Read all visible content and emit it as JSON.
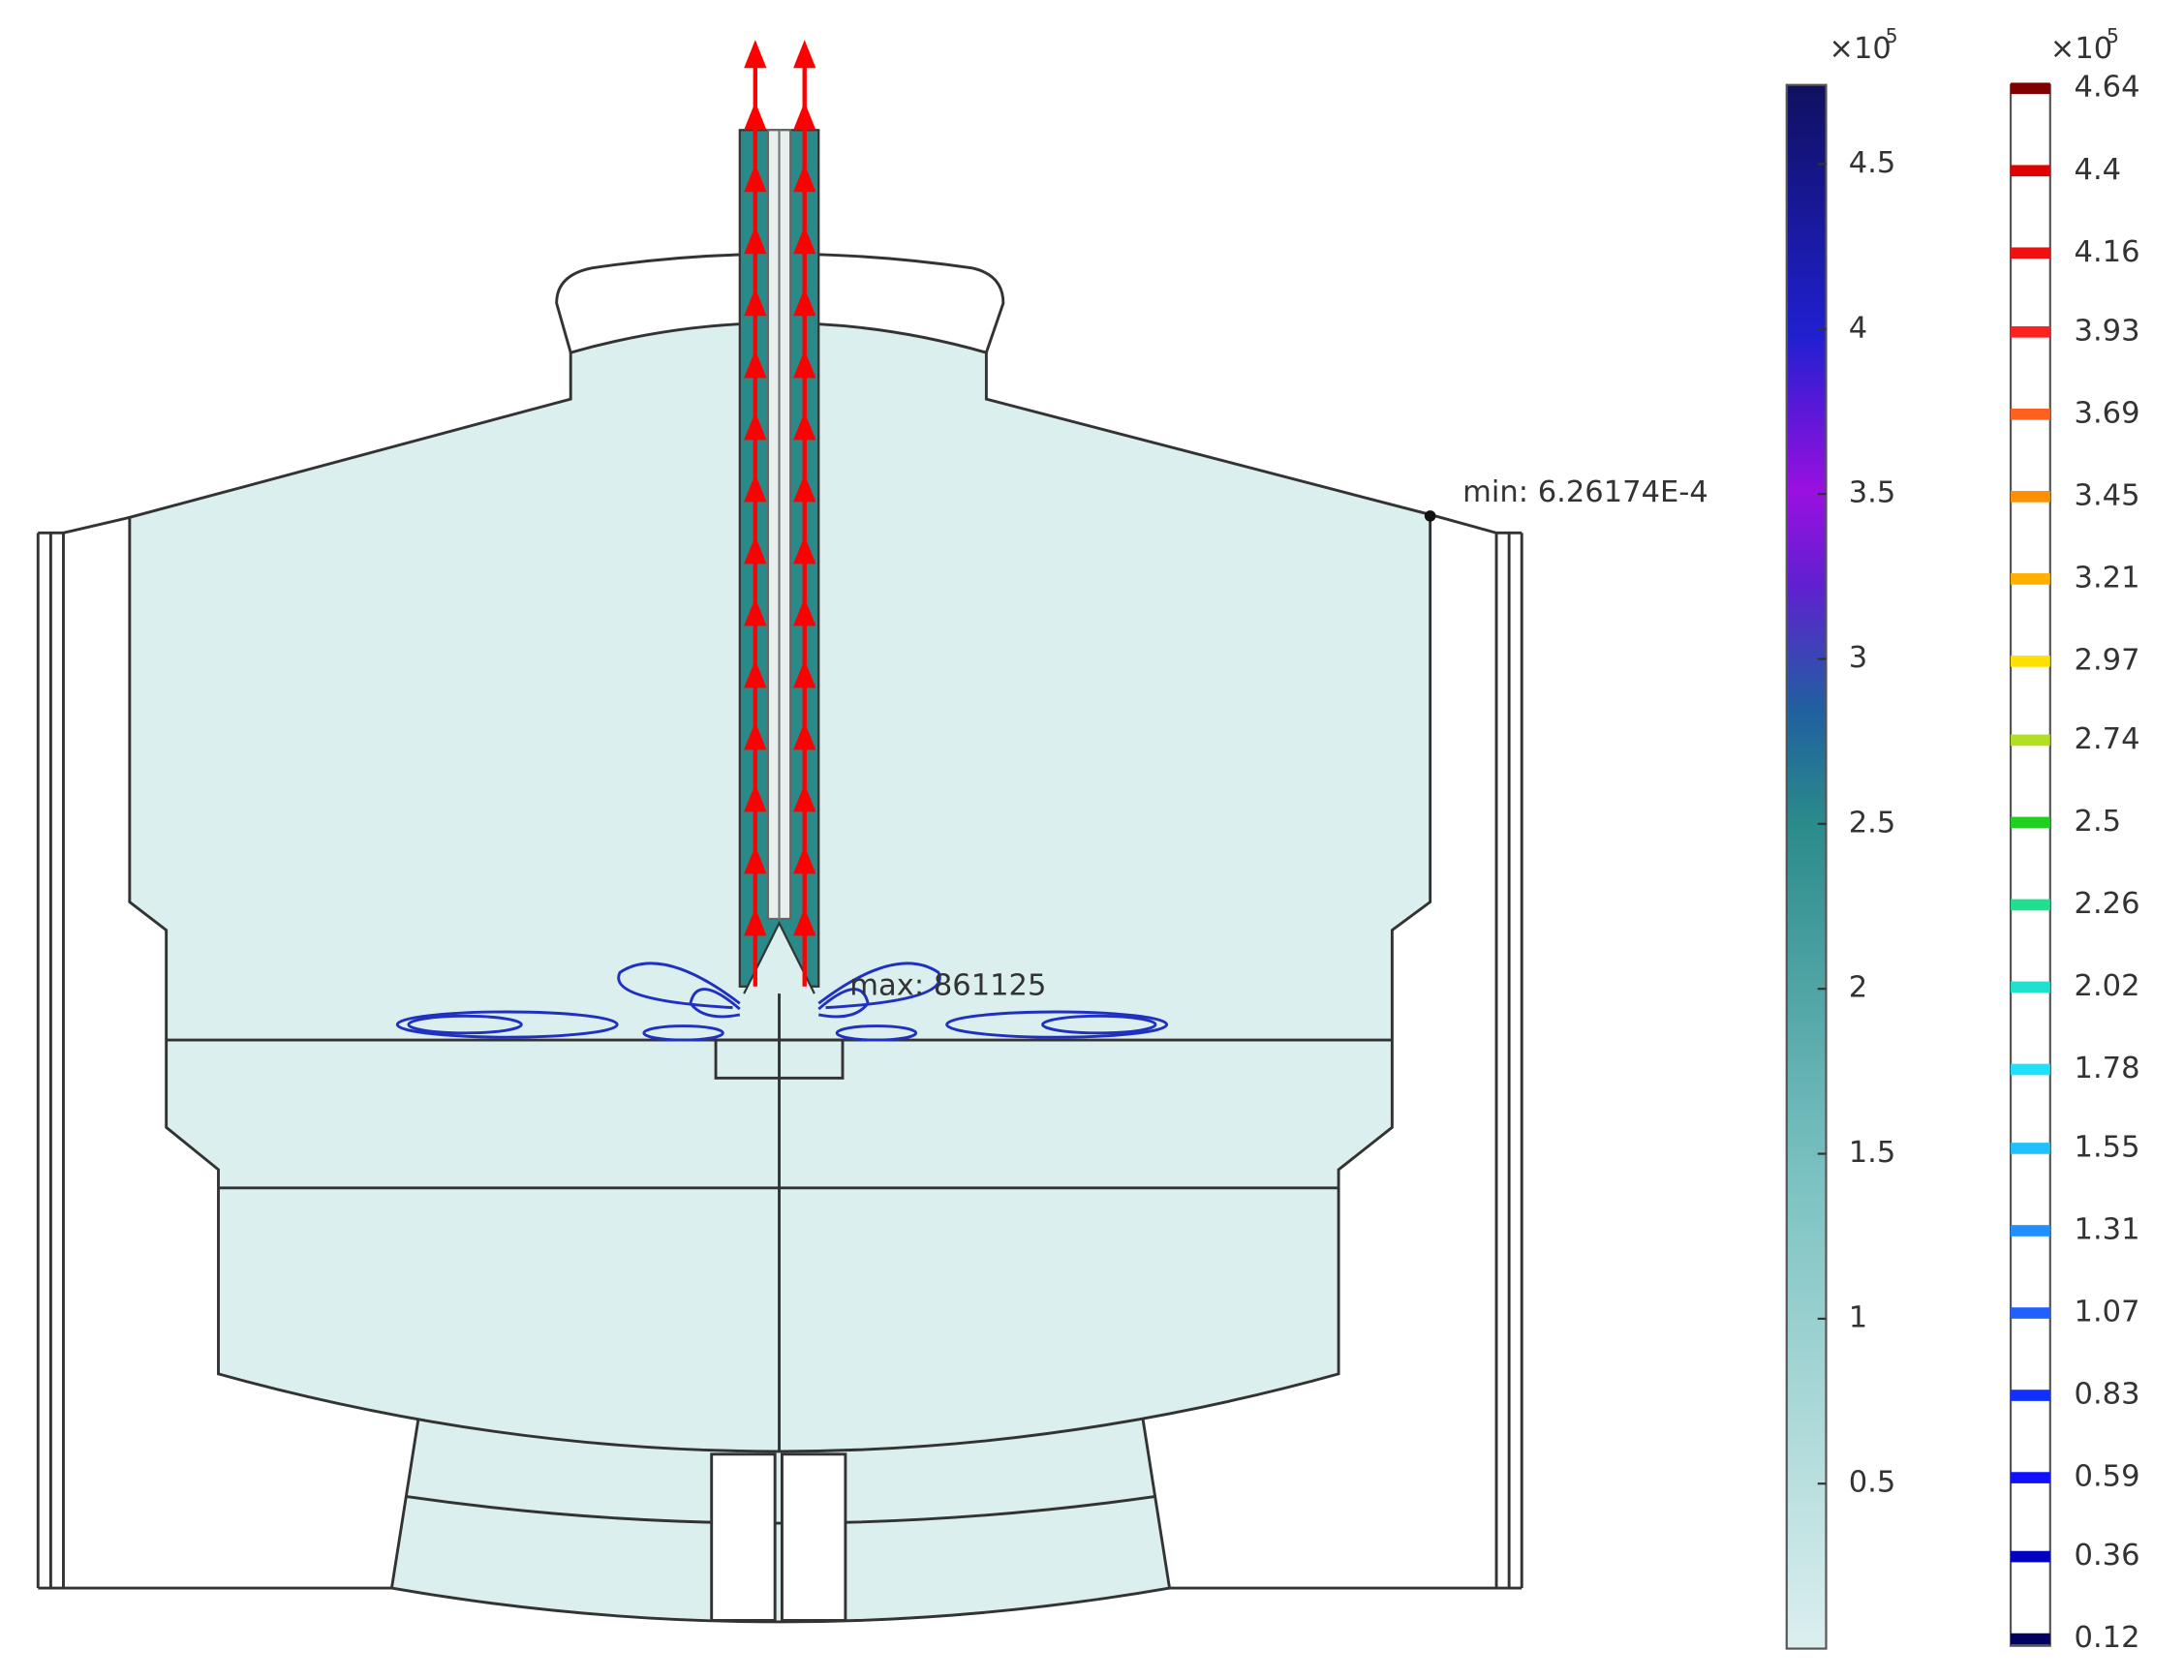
{
  "annotations": {
    "min": "min: 6.26174E-4",
    "max": "max: 861125"
  },
  "surface_colorbar": {
    "multiplier": "×10",
    "exponent": "5",
    "lim": [
      0,
      4.74
    ],
    "ticks": [
      0.5,
      1,
      1.5,
      2,
      2.5,
      3,
      3.5,
      4,
      4.5
    ]
  },
  "contour_colorbar": {
    "multiplier": "×10",
    "exponent": "5",
    "lim": [
      0.1,
      4.65
    ],
    "levels": [
      4.64,
      4.4,
      4.16,
      3.93,
      3.69,
      3.45,
      3.21,
      2.97,
      2.74,
      2.5,
      2.26,
      2.02,
      1.78,
      1.55,
      1.31,
      1.07,
      0.83,
      0.59,
      0.36,
      0.12
    ],
    "colors": [
      "#800000",
      "#e00000",
      "#f01010",
      "#ff2020",
      "#ff6020",
      "#ff9000",
      "#ffb000",
      "#ffe000",
      "#b0e020",
      "#20d020",
      "#20e090",
      "#20e0d0",
      "#20e0ff",
      "#20c0ff",
      "#2090ff",
      "#2060ff",
      "#1030ff",
      "#1010ff",
      "#0000c0",
      "#000060"
    ]
  }
}
